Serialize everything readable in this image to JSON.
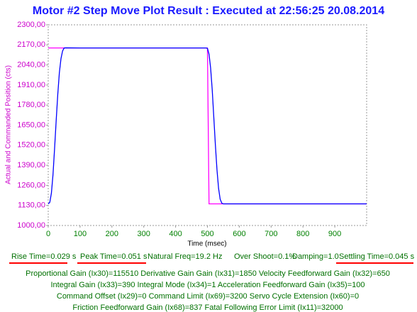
{
  "chart_data": {
    "type": "line",
    "title": "Motor #2 Step Move Plot Result : Executed at 22:56:25 20.08.2014",
    "x_label": "Time (msec)",
    "y_label": "Actual and Commanded Position (cts)",
    "x": [
      0,
      5,
      10,
      15,
      20,
      25,
      30,
      35,
      40,
      45,
      50,
      55,
      100,
      200,
      300,
      400,
      495,
      500,
      505,
      510,
      515,
      520,
      525,
      530,
      535,
      540,
      545,
      550,
      555,
      600,
      700,
      800,
      900,
      1000
    ],
    "series": [
      {
        "color": "#ff00ff",
        "values": [
          2150,
          2150,
          2150,
          2150,
          2150,
          2150,
          2150,
          2150,
          2150,
          2150,
          2150,
          2150,
          2150,
          2150,
          2150,
          2150,
          2150,
          2150,
          1140,
          1140,
          1140,
          1140,
          1140,
          1140,
          1140,
          1140,
          1140,
          1140,
          1140,
          1140,
          1140,
          1140,
          1140,
          1140
        ]
      },
      {
        "color": "#0000ff",
        "values": [
          1140,
          1150,
          1210,
          1330,
          1500,
          1680,
          1850,
          1990,
          2080,
          2130,
          2150,
          2151,
          2150,
          2150,
          2150,
          2150,
          2150,
          2148,
          2110,
          2020,
          1880,
          1700,
          1520,
          1360,
          1240,
          1170,
          1145,
          1140,
          1140,
          1140,
          1140,
          1140,
          1140,
          1140
        ]
      }
    ],
    "xlim": [
      0,
      1000
    ],
    "xticks": [
      0,
      100,
      200,
      300,
      400,
      500,
      600,
      700,
      800,
      900
    ],
    "ylim": [
      1000,
      2300
    ],
    "yticks": [
      {
        "value": 1000,
        "label": "1000,00"
      },
      {
        "value": 1130,
        "label": "1130,00"
      },
      {
        "value": 1260,
        "label": "1260,00"
      },
      {
        "value": 1390,
        "label": "1390,00"
      },
      {
        "value": 1520,
        "label": "1520,00"
      },
      {
        "value": 1650,
        "label": "1650,00"
      },
      {
        "value": 1780,
        "label": "1780,00"
      },
      {
        "value": 1910,
        "label": "1910,00"
      },
      {
        "value": 2040,
        "label": "2040,00"
      },
      {
        "value": 2170,
        "label": "2170,00"
      },
      {
        "value": 2300,
        "label": "2300,00"
      }
    ],
    "grid": false,
    "stats": [
      "Rise Time=0.029 s",
      "Peak Time=0.051 s",
      "Natural Freq=19.2 Hz",
      "Over Shoot=0.1%",
      "Damping=1.0",
      "Settling Time=0.045 s"
    ],
    "gains": [
      "Proportional Gain (Ix30)=115510  Derivative Gain Gain (Ix31)=1850  Velocity Feedforward Gain (Ix32)=650",
      "Integral Gain (Ix33)=390  Integral Mode (Ix34)=1  Acceleration Feedforward Gain (Ix35)=100",
      "Command Offset (Ix29)=0  Command Limit (Ix69)=3200  Servo Cycle Extension (Ix60)=0",
      "Friction Feedforward Gain (Ix68)=837  Fatal Following Error Limit (Ix11)=32000"
    ]
  }
}
